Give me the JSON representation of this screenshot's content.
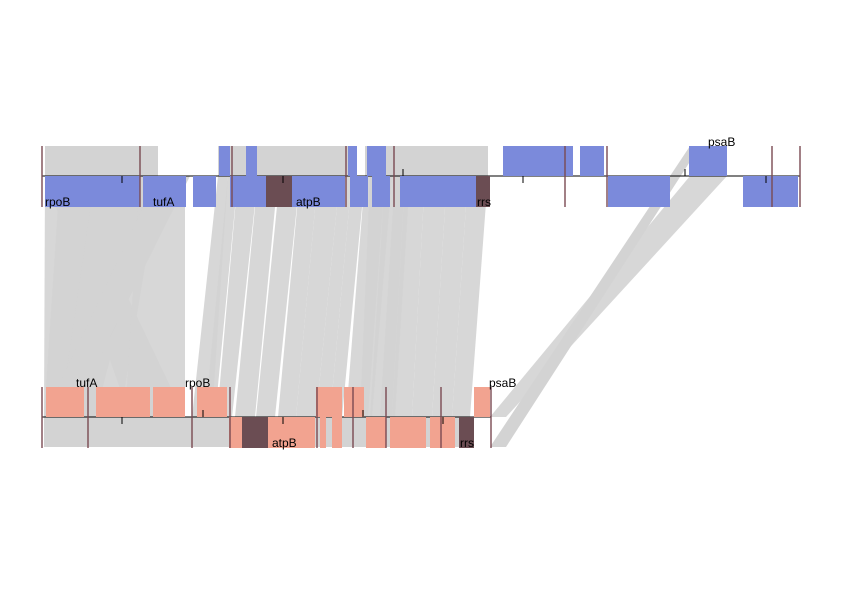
{
  "colors": {
    "link": "#d3d3d3",
    "genome_top_feature": "#7b8adb",
    "genome_bottom_feature": "#f2a390",
    "highlight_gene": "#6b4d53",
    "axis": "#000000",
    "thin_mark": "#7a4a52"
  },
  "genome_top": {
    "labels": [
      "rpoB",
      "tufA",
      "atpB",
      "rrs",
      "psaB"
    ]
  },
  "genome_bottom": {
    "labels": [
      "tufA",
      "rpoB",
      "atpB",
      "rrs",
      "psaB"
    ]
  }
}
